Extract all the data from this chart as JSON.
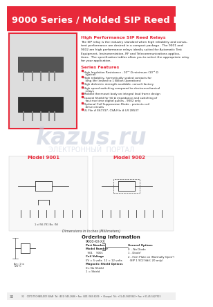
{
  "bg_color": "#ffffff",
  "header_bg": "#e8293a",
  "header_text": "9000 Series / Molded SIP Reed Relays",
  "header_text_color": "#ffffff",
  "header_fontsize": 9.5,
  "section_title1": "High Performance SIP Reed Relays",
  "section_title1_color": "#e8293a",
  "section_title2": "Series Features",
  "section_title2_color": "#e8293a",
  "features": [
    "High Insulation Resistance - 10¹² Ω minimum (10¹³ Ω typical)",
    "High reliability, hermetically sealed contacts for long life (tested to 1 Billion Operations)",
    "High dielectric strength available, consult factory",
    "High speed switching compared to electromechanical relays",
    "Molded thermoset body on integral lead frame design",
    "Coaxial Shield for 50 Ω impedance and switching of fast rise time digital pulses - 9002 only",
    "Optional Coil Suppression Diode - protects coil drive circuits",
    "UL File # E67317, CSA File # LR 28537"
  ],
  "bullet_color": "#e8293a",
  "model_label1": "Model 9001",
  "model_label2": "Model 9002",
  "model_label_color": "#e8293a",
  "dim_note": "Dimensions in Inches (Millimeters)",
  "ordering_title": "Ordering Information",
  "footer_text": "32    COTO TECHNOLOGY (USA)  Tel: (401) 943-2686 • Fax: (401) 943-6039  •  (Europe)  Tel: +31-45-5609343 • Fax: +31-45-5427515",
  "photo_border_color": "#e8293a",
  "photo_border_lw": 1.5,
  "watermark_text": "kazus.ru",
  "sub_watermark": "ЭЛЕКТРОННЫЙ  ПОРТАЛ"
}
